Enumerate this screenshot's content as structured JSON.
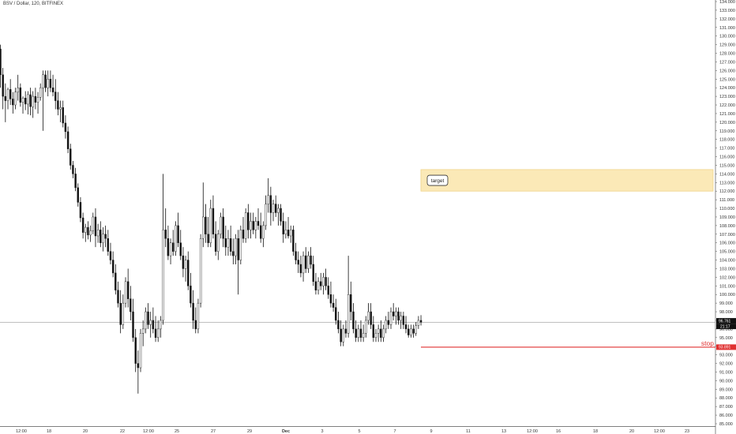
{
  "header": {
    "title": "BSV / Dollar, 120, BITFINEX"
  },
  "colors": {
    "candle": "#111111",
    "stop_line": "#e03030",
    "target_fill": "#fbe9b7",
    "target_border": "#f0d48a",
    "price_line": "#9a9a9a",
    "axis_badge": "#111111"
  },
  "chart_data": {
    "type": "candlestick",
    "symbol": "BSV / Dollar",
    "interval": "120",
    "exchange": "BITFINEX",
    "ylim": [
      85.0,
      134.0
    ],
    "y_ticks": [
      "85.000",
      "86.000",
      "87.000",
      "88.000",
      "89.000",
      "90.000",
      "91.000",
      "92.000",
      "93.000",
      "94.000",
      "95.000",
      "96.000",
      "97.000",
      "98.000",
      "99.000",
      "100.000",
      "101.000",
      "102.000",
      "103.000",
      "104.000",
      "105.000",
      "106.000",
      "107.000",
      "108.000",
      "109.000",
      "110.000",
      "111.000",
      "112.000",
      "113.000",
      "114.000",
      "115.000",
      "116.000",
      "117.000",
      "118.000",
      "119.000",
      "120.000",
      "121.000",
      "122.000",
      "123.000",
      "124.000",
      "125.000",
      "126.000",
      "127.000",
      "128.000",
      "129.000",
      "130.000",
      "131.000",
      "132.000",
      "133.000",
      "134.000"
    ],
    "x_ticks": [
      "12:00",
      "18",
      "20",
      "22",
      "12:00",
      "25",
      "27",
      "29",
      "Dec",
      "3",
      "5",
      "7",
      "9",
      "11",
      "13",
      "12:00",
      "16",
      "18",
      "20",
      "12:00",
      "23"
    ],
    "x_ticks_bold": [
      "Dec"
    ],
    "last_price": "96.761",
    "countdown": "21:17",
    "stop_price": "93.891",
    "stop_label": "stop",
    "target_label": "target",
    "target_zone": [
      112.0,
      114.5
    ],
    "candles": [
      [
        0,
        128.5,
        129.0,
        124.0,
        125.5
      ],
      [
        1,
        125.5,
        126.3,
        121.5,
        123.0
      ],
      [
        2,
        123.0,
        124.5,
        120.0,
        122.5
      ],
      [
        3,
        122.5,
        124.0,
        121.5,
        123.8
      ],
      [
        4,
        123.8,
        125.0,
        122.0,
        122.7
      ],
      [
        5,
        122.7,
        123.5,
        121.0,
        122.0
      ],
      [
        6,
        122.0,
        124.0,
        121.5,
        123.5
      ],
      [
        7,
        123.5,
        125.5,
        122.5,
        124.0
      ],
      [
        8,
        124.0,
        124.5,
        121.8,
        122.3
      ],
      [
        9,
        122.3,
        123.0,
        121.0,
        122.8
      ],
      [
        10,
        122.8,
        123.6,
        121.4,
        122.1
      ],
      [
        11,
        122.1,
        123.6,
        120.9,
        123.2
      ],
      [
        12,
        123.2,
        124.0,
        120.8,
        121.8
      ],
      [
        13,
        121.8,
        123.6,
        120.5,
        123.0
      ],
      [
        14,
        123.0,
        124.0,
        121.5,
        122.3
      ],
      [
        15,
        122.3,
        123.5,
        121.0,
        122.9
      ],
      [
        16,
        122.9,
        124.5,
        122.5,
        124.0
      ],
      [
        17,
        124.0,
        126.0,
        119.0,
        125.5
      ],
      [
        18,
        125.5,
        126.0,
        123.5,
        124.0
      ],
      [
        19,
        124.0,
        126.0,
        123.0,
        125.0
      ],
      [
        20,
        125.0,
        126.0,
        123.5,
        124.0
      ],
      [
        21,
        124.0,
        125.5,
        123.0,
        123.5
      ],
      [
        22,
        123.5,
        125.0,
        121.5,
        122.5
      ],
      [
        23,
        122.5,
        123.5,
        120.8,
        121.5
      ],
      [
        24,
        121.5,
        122.5,
        120.0,
        121.7
      ],
      [
        25,
        121.7,
        122.5,
        119.4,
        119.9
      ],
      [
        26,
        119.9,
        120.8,
        118.1,
        118.9
      ],
      [
        27,
        118.9,
        119.5,
        116.4,
        116.9
      ],
      [
        28,
        116.9,
        117.5,
        114.5,
        115.0
      ],
      [
        29,
        115.0,
        115.5,
        113.5,
        114.0
      ],
      [
        30,
        114.0,
        114.7,
        112.0,
        112.4
      ],
      [
        31,
        112.4,
        112.9,
        110.2,
        110.7
      ],
      [
        32,
        110.7,
        111.3,
        108.4,
        108.9
      ],
      [
        33,
        108.9,
        109.5,
        106.5,
        107.2
      ],
      [
        34,
        107.2,
        108.2,
        106.1,
        107.8
      ],
      [
        35,
        107.8,
        108.5,
        106.4,
        106.9
      ],
      [
        36,
        106.9,
        108.0,
        106.1,
        107.4
      ],
      [
        37,
        107.4,
        109.5,
        107.0,
        109.0
      ],
      [
        38,
        109.0,
        110.0,
        105.5,
        106.8
      ],
      [
        39,
        106.8,
        108.2,
        106.0,
        107.5
      ],
      [
        40,
        107.5,
        108.5,
        105.5,
        106.0
      ],
      [
        41,
        106.0,
        107.8,
        105.0,
        107.0
      ],
      [
        42,
        107.0,
        108.0,
        105.5,
        106.5
      ],
      [
        43,
        106.5,
        107.5,
        104.5,
        105.0
      ],
      [
        44,
        105.0,
        106.0,
        103.5,
        104.0
      ],
      [
        45,
        104.0,
        105.0,
        102.0,
        102.5
      ],
      [
        46,
        102.5,
        103.5,
        100.0,
        100.5
      ],
      [
        47,
        100.5,
        101.5,
        98.5,
        99.0
      ],
      [
        48,
        99.0,
        100.5,
        95.5,
        96.5
      ],
      [
        49,
        96.5,
        100.0,
        96.0,
        99.0
      ],
      [
        50,
        99.0,
        102.0,
        98.5,
        101.5
      ],
      [
        51,
        101.5,
        103.0,
        98.5,
        99.5
      ],
      [
        52,
        99.5,
        101.0,
        97.0,
        98.0
      ],
      [
        53,
        98.0,
        99.5,
        94.5,
        95.0
      ],
      [
        54,
        95.0,
        96.0,
        91.0,
        92.0
      ],
      [
        55,
        92.0,
        93.5,
        88.5,
        91.5
      ],
      [
        56,
        91.5,
        96.0,
        91.0,
        95.5
      ],
      [
        57,
        95.5,
        97.0,
        94.0,
        96.0
      ],
      [
        58,
        96.0,
        98.5,
        95.5,
        98.0
      ],
      [
        59,
        98.0,
        99.0,
        96.0,
        96.5
      ],
      [
        60,
        96.5,
        98.0,
        95.0,
        97.0
      ],
      [
        61,
        97.0,
        98.5,
        95.5,
        96.0
      ],
      [
        62,
        96.0,
        97.5,
        94.5,
        95.0
      ],
      [
        63,
        95.0,
        97.0,
        94.5,
        96.0
      ],
      [
        64,
        96.0,
        97.5,
        95.0,
        97.0
      ],
      [
        65,
        97.0,
        114.0,
        96.5,
        107.5
      ],
      [
        66,
        107.5,
        110.0,
        105.5,
        106.5
      ],
      [
        67,
        106.5,
        108.0,
        104.0,
        104.5
      ],
      [
        68,
        104.5,
        106.5,
        103.5,
        106.0
      ],
      [
        69,
        106.0,
        107.5,
        104.5,
        105.0
      ],
      [
        70,
        105.0,
        108.5,
        104.5,
        108.0
      ],
      [
        71,
        108.0,
        109.5,
        105.5,
        106.0
      ],
      [
        72,
        106.0,
        107.5,
        104.0,
        104.5
      ],
      [
        73,
        104.5,
        105.5,
        102.0,
        103.0
      ],
      [
        74,
        103.0,
        104.5,
        101.5,
        104.0
      ],
      [
        75,
        104.0,
        105.0,
        100.5,
        101.0
      ],
      [
        76,
        101.0,
        102.5,
        98.5,
        99.0
      ],
      [
        77,
        99.0,
        100.5,
        96.0,
        97.0
      ],
      [
        78,
        97.0,
        98.5,
        95.5,
        96.0
      ],
      [
        79,
        96.0,
        99.5,
        95.5,
        99.0
      ],
      [
        80,
        99.0,
        107.0,
        98.5,
        106.5
      ],
      [
        81,
        106.5,
        113.0,
        105.5,
        109.0
      ],
      [
        82,
        109.0,
        110.5,
        106.0,
        107.0
      ],
      [
        83,
        107.0,
        109.0,
        105.5,
        106.0
      ],
      [
        84,
        106.0,
        111.0,
        105.5,
        110.0
      ],
      [
        85,
        110.0,
        111.5,
        106.5,
        107.0
      ],
      [
        86,
        107.0,
        108.5,
        104.5,
        105.0
      ],
      [
        87,
        105.0,
        107.5,
        104.0,
        107.0
      ],
      [
        88,
        107.0,
        109.5,
        106.5,
        109.0
      ],
      [
        89,
        109.0,
        110.0,
        105.5,
        106.5
      ],
      [
        90,
        106.5,
        108.0,
        104.5,
        105.5
      ],
      [
        91,
        105.5,
        107.5,
        104.5,
        106.5
      ],
      [
        92,
        106.5,
        108.0,
        104.5,
        105.0
      ],
      [
        93,
        105.0,
        106.5,
        103.5,
        104.5
      ],
      [
        94,
        104.5,
        107.0,
        103.5,
        106.5
      ],
      [
        95,
        106.5,
        107.5,
        100.0,
        104.0
      ],
      [
        96,
        104.0,
        108.0,
        103.5,
        107.5
      ],
      [
        97,
        107.5,
        109.0,
        106.0,
        106.5
      ],
      [
        98,
        106.5,
        110.0,
        106.0,
        109.5
      ],
      [
        99,
        109.5,
        110.5,
        106.5,
        107.5
      ],
      [
        100,
        107.5,
        109.5,
        106.5,
        108.5
      ],
      [
        101,
        108.5,
        109.5,
        107.0,
        107.5
      ],
      [
        102,
        107.5,
        109.0,
        106.5,
        108.5
      ],
      [
        103,
        108.5,
        110.0,
        107.5,
        108.0
      ],
      [
        104,
        108.0,
        109.5,
        106.0,
        106.5
      ],
      [
        105,
        106.5,
        108.5,
        105.5,
        108.0
      ],
      [
        106,
        108.0,
        111.5,
        107.5,
        110.5
      ],
      [
        107,
        110.5,
        113.5,
        109.5,
        111.5
      ],
      [
        108,
        111.5,
        112.5,
        108.0,
        109.5
      ],
      [
        109,
        109.5,
        111.0,
        108.5,
        110.5
      ],
      [
        110,
        110.5,
        111.5,
        109.0,
        109.5
      ],
      [
        111,
        109.5,
        110.5,
        108.0,
        110.0
      ],
      [
        112,
        110.0,
        110.5,
        108.0,
        108.5
      ],
      [
        113,
        108.5,
        109.5,
        106.0,
        107.0
      ],
      [
        114,
        107.0,
        108.5,
        106.5,
        107.5
      ],
      [
        115,
        107.5,
        109.0,
        106.5,
        106.8
      ],
      [
        116,
        106.8,
        108.0,
        106.0,
        107.5
      ],
      [
        117,
        107.5,
        108.0,
        104.5,
        105.0
      ],
      [
        118,
        105.0,
        106.0,
        103.5,
        104.0
      ],
      [
        119,
        104.0,
        105.0,
        102.5,
        103.5
      ],
      [
        120,
        103.5,
        104.5,
        102.0,
        102.5
      ],
      [
        121,
        102.5,
        105.0,
        101.5,
        104.5
      ],
      [
        122,
        104.5,
        105.5,
        102.5,
        103.0
      ],
      [
        123,
        103.0,
        105.0,
        102.5,
        104.5
      ],
      [
        124,
        104.5,
        105.5,
        103.0,
        103.5
      ],
      [
        125,
        103.5,
        104.5,
        101.0,
        101.5
      ],
      [
        126,
        101.5,
        102.5,
        100.0,
        100.5
      ],
      [
        127,
        100.5,
        102.0,
        100.0,
        101.5
      ],
      [
        128,
        101.5,
        102.5,
        100.5,
        101.0
      ],
      [
        129,
        101.0,
        102.5,
        100.0,
        102.0
      ],
      [
        130,
        102.0,
        103.0,
        100.5,
        101.0
      ],
      [
        131,
        101.0,
        102.0,
        99.5,
        100.0
      ],
      [
        132,
        100.0,
        101.5,
        98.5,
        99.0
      ],
      [
        133,
        99.0,
        100.0,
        98.0,
        98.5
      ],
      [
        134,
        98.5,
        99.5,
        96.5,
        97.0
      ],
      [
        135,
        97.0,
        98.0,
        95.5,
        96.0
      ],
      [
        136,
        96.0,
        97.0,
        94.0,
        94.5
      ],
      [
        137,
        94.5,
        96.5,
        94.0,
        96.0
      ],
      [
        138,
        96.0,
        97.0,
        95.0,
        95.5
      ],
      [
        139,
        95.5,
        104.5,
        95.0,
        100.0
      ],
      [
        140,
        100.0,
        101.5,
        97.0,
        98.0
      ],
      [
        141,
        98.0,
        99.0,
        95.5,
        96.0
      ],
      [
        142,
        96.0,
        97.0,
        94.5,
        95.0
      ],
      [
        143,
        95.0,
        96.5,
        94.5,
        96.0
      ],
      [
        144,
        96.0,
        97.0,
        94.5,
        95.0
      ],
      [
        145,
        95.0,
        96.5,
        94.5,
        95.5
      ],
      [
        146,
        95.5,
        97.5,
        95.0,
        97.0
      ],
      [
        147,
        97.0,
        99.0,
        96.5,
        98.0
      ],
      [
        148,
        98.0,
        99.0,
        96.0,
        96.5
      ],
      [
        149,
        96.5,
        97.5,
        94.5,
        95.0
      ],
      [
        150,
        95.0,
        96.0,
        94.5,
        95.5
      ],
      [
        151,
        95.5,
        96.5,
        94.5,
        96.0
      ],
      [
        152,
        96.0,
        97.0,
        94.5,
        95.0
      ],
      [
        153,
        95.0,
        96.5,
        94.5,
        96.0
      ],
      [
        154,
        96.0,
        97.5,
        95.5,
        97.0
      ],
      [
        155,
        97.0,
        98.0,
        96.0,
        96.5
      ],
      [
        156,
        96.5,
        98.5,
        96.0,
        98.0
      ],
      [
        157,
        98.0,
        99.0,
        97.0,
        97.5
      ],
      [
        158,
        97.5,
        98.5,
        96.5,
        98.0
      ],
      [
        159,
        98.0,
        98.5,
        96.5,
        97.0
      ],
      [
        160,
        97.0,
        98.0,
        96.0,
        97.5
      ],
      [
        161,
        97.5,
        98.0,
        96.0,
        96.5
      ],
      [
        162,
        96.5,
        97.5,
        95.5,
        96.0
      ],
      [
        163,
        96.0,
        96.5,
        95.0,
        95.3
      ],
      [
        164,
        95.3,
        96.5,
        95.0,
        96.0
      ],
      [
        165,
        96.0,
        96.5,
        95.0,
        95.5
      ],
      [
        166,
        95.5,
        96.8,
        95.2,
        96.4
      ],
      [
        167,
        96.4,
        97.5,
        96.0,
        97.0
      ],
      [
        168,
        97.0,
        97.6,
        96.4,
        96.8
      ]
    ]
  }
}
